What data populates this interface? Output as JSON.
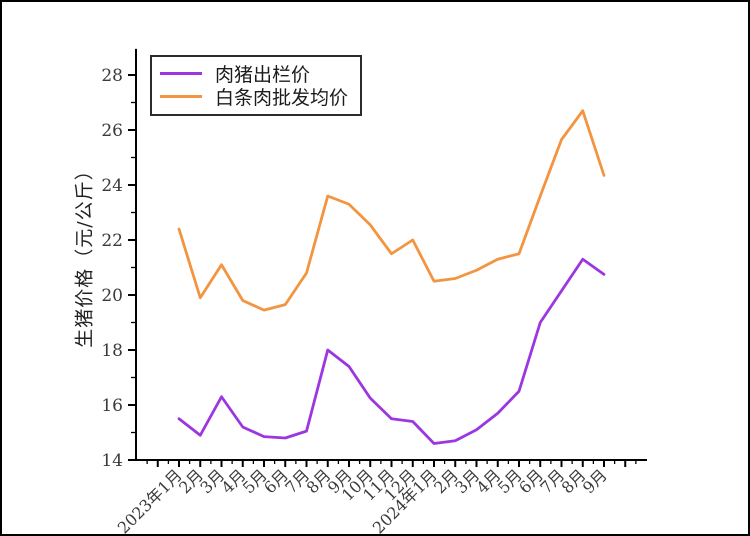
{
  "figure": {
    "background": "#ffffff",
    "border_color": "#000000"
  },
  "chart_data": {
    "type": "line",
    "title": "",
    "xlabel": "",
    "ylabel": "生猪价格（元/公斤）",
    "categories": [
      "2023年1月",
      "2月",
      "3月",
      "4月",
      "5月",
      "6月",
      "7月",
      "8月",
      "9月",
      "10月",
      "11月",
      "12月",
      "2024年1月",
      "2月",
      "3月",
      "4月",
      "5月",
      "6月",
      "7月",
      "8月",
      "9月"
    ],
    "series": [
      {
        "name": "肉猪出栏价",
        "color": "#9c36e0",
        "values": [
          15.5,
          14.9,
          16.3,
          15.2,
          14.85,
          14.8,
          15.05,
          18.0,
          17.4,
          16.25,
          15.5,
          15.4,
          14.6,
          14.7,
          15.1,
          15.7,
          16.5,
          19.0,
          20.15,
          21.3,
          20.75
        ]
      },
      {
        "name": "白条肉批发均价",
        "color": "#f29440",
        "values": [
          22.4,
          19.9,
          21.1,
          19.8,
          19.45,
          19.65,
          20.8,
          23.6,
          23.3,
          22.55,
          21.5,
          22.0,
          20.5,
          20.6,
          20.9,
          21.3,
          21.5,
          23.6,
          25.65,
          26.7,
          24.35
        ]
      }
    ],
    "yticks": [
      14,
      16,
      18,
      20,
      22,
      24,
      26,
      28
    ],
    "ylim": [
      14,
      28.95
    ],
    "grid": false,
    "legend_position": "upper left",
    "axis_color": "#000000",
    "tick_label_color": "#3a3a3a"
  }
}
